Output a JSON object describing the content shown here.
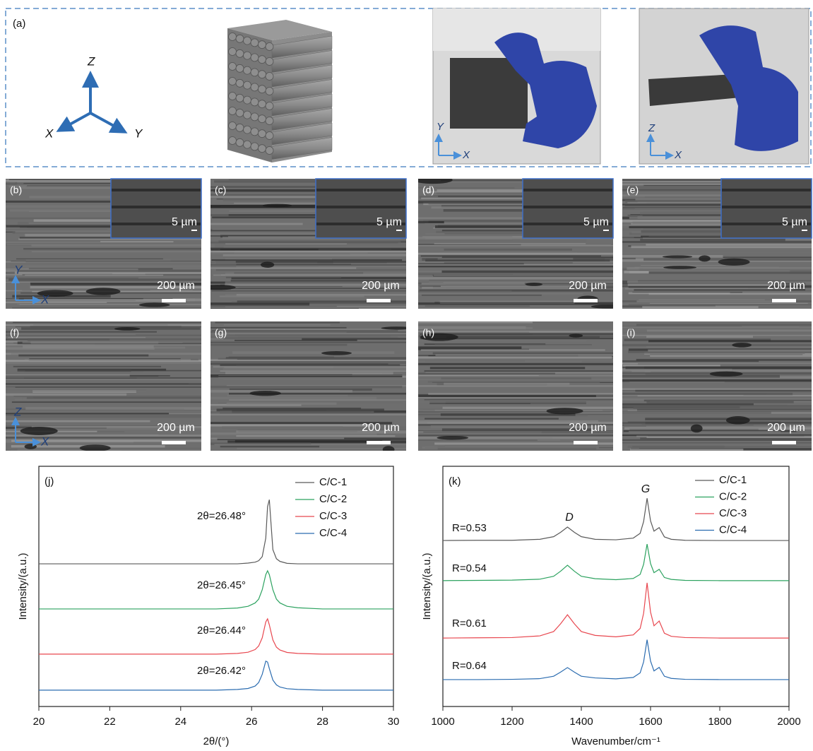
{
  "panel_a": {
    "label": "(a)",
    "axis_z": "Z",
    "axis_x": "X",
    "axis_y": "Y",
    "photo1_axes": [
      "Y",
      "X"
    ],
    "photo2_axes": [
      "Z",
      "X"
    ]
  },
  "sem_panels": [
    {
      "label": "(b)",
      "scale": "200 µm",
      "inset_scale": "5 µm",
      "axes": [
        "Y",
        "X"
      ]
    },
    {
      "label": "(c)",
      "scale": "200 µm",
      "inset_scale": "5 µm"
    },
    {
      "label": "(d)",
      "scale": "200 µm",
      "inset_scale": "5 µm"
    },
    {
      "label": "(e)",
      "scale": "200 µm",
      "inset_scale": "5 µm"
    },
    {
      "label": "(f)",
      "scale": "200 µm",
      "axes": [
        "Z",
        "X"
      ]
    },
    {
      "label": "(g)",
      "scale": "200 µm"
    },
    {
      "label": "(h)",
      "scale": "200 µm"
    },
    {
      "label": "(i)",
      "scale": "200 µm"
    }
  ],
  "chart_data": [
    {
      "type": "line",
      "panel": "(j)",
      "x_label": "2θ/(°)",
      "y_label": "Intensity/(a.u.)",
      "xlim": [
        20,
        30
      ],
      "ylim": [
        0,
        100
      ],
      "xticks": [
        20,
        22,
        24,
        26,
        28,
        30
      ],
      "x": [
        20,
        21,
        22,
        23,
        24,
        25,
        25.6,
        25.9,
        26.1,
        26.2,
        26.3,
        26.4,
        26.45,
        26.5,
        26.6,
        26.7,
        26.8,
        27.0,
        27.3,
        28,
        29,
        30
      ],
      "series": [
        {
          "name": "C/C-1",
          "color": "#5a5a5a",
          "values": [
            59.4,
            59.4,
            59.4,
            59.4,
            59.4,
            59.4,
            59.4,
            59.7,
            60.1,
            60.7,
            62.4,
            70.1,
            83.2,
            86.1,
            65.3,
            61.5,
            60.4,
            59.6,
            59.4,
            59.4,
            59.4,
            59.4
          ]
        },
        {
          "name": "C/C-2",
          "color": "#2ca25f",
          "values": [
            40.6,
            40.6,
            40.6,
            40.6,
            40.6,
            40.6,
            41.0,
            41.7,
            43.1,
            44.7,
            48.6,
            54.9,
            56.5,
            54.9,
            48.6,
            44.7,
            43.1,
            41.7,
            41.1,
            40.6,
            40.6,
            40.6
          ]
        },
        {
          "name": "C/C-3",
          "color": "#e8474f",
          "values": [
            21.8,
            21.8,
            21.8,
            21.8,
            21.8,
            21.8,
            22.1,
            22.6,
            23.7,
            25.2,
            28.6,
            35.2,
            36.5,
            34.0,
            27.7,
            24.7,
            23.5,
            22.5,
            22.1,
            21.8,
            21.8,
            21.8
          ]
        },
        {
          "name": "C/C-4",
          "color": "#2b6cb0",
          "values": [
            6.8,
            6.8,
            6.8,
            6.8,
            6.8,
            6.8,
            7.1,
            7.5,
            8.5,
            10.0,
            13.4,
            18.9,
            18.5,
            15.8,
            11.0,
            9.0,
            8.1,
            7.4,
            7.1,
            6.8,
            6.8,
            6.8
          ]
        }
      ],
      "annotations": [
        "2θ=26.48°",
        "2θ=26.45°",
        "2θ=26.44°",
        "2θ=26.42°"
      ]
    },
    {
      "type": "line",
      "panel": "(k)",
      "x_label": "Wavenumber/cm⁻¹",
      "y_label": "Intensity/(a.u.)",
      "xlim": [
        1000,
        2000
      ],
      "ylim": [
        0,
        100
      ],
      "xticks": [
        1000,
        1200,
        1400,
        1600,
        1800,
        2000
      ],
      "x": [
        1000,
        1100,
        1200,
        1280,
        1320,
        1340,
        1360,
        1380,
        1400,
        1440,
        1500,
        1550,
        1570,
        1580,
        1590,
        1600,
        1610,
        1625,
        1640,
        1660,
        1700,
        1800,
        1900,
        2000
      ],
      "series": [
        {
          "name": "C/C-1",
          "color": "#5a5a5a",
          "values": [
            69.1,
            69.2,
            69.2,
            69.6,
            70.7,
            72.5,
            74.7,
            72.5,
            70.7,
            69.6,
            69.4,
            70.1,
            72.1,
            77.0,
            86.7,
            77.3,
            73.0,
            74.5,
            70.6,
            69.6,
            69.2,
            69.1,
            69.1,
            69.1
          ]
        },
        {
          "name": "C/C-2",
          "color": "#2ca25f",
          "values": [
            52.4,
            52.5,
            52.6,
            53.0,
            54.2,
            56.3,
            58.8,
            56.3,
            54.2,
            53.2,
            52.8,
            53.3,
            55.0,
            59.2,
            67.6,
            59.5,
            55.7,
            57.1,
            53.7,
            52.9,
            52.5,
            52.4,
            52.4,
            52.4
          ]
        },
        {
          "name": "C/C-3",
          "color": "#e8474f",
          "values": [
            28.5,
            28.6,
            28.7,
            29.4,
            31.2,
            34.4,
            38.2,
            34.4,
            31.2,
            29.6,
            29.0,
            29.8,
            32.5,
            38.8,
            51.5,
            39.3,
            33.6,
            35.6,
            30.5,
            29.2,
            28.7,
            28.5,
            28.5,
            28.5
          ]
        },
        {
          "name": "C/C-4",
          "color": "#2b6cb0",
          "values": [
            11.2,
            11.2,
            11.3,
            11.6,
            12.6,
            14.3,
            16.2,
            14.3,
            12.6,
            11.9,
            11.5,
            12.1,
            14.0,
            18.6,
            27.8,
            18.9,
            14.8,
            16.3,
            12.6,
            11.7,
            11.3,
            11.2,
            11.2,
            11.2
          ]
        }
      ],
      "annotations": [
        "R=0.53",
        "R=0.54",
        "R=0.61",
        "R=0.64"
      ],
      "peak_labels": [
        "D",
        "G"
      ]
    }
  ]
}
